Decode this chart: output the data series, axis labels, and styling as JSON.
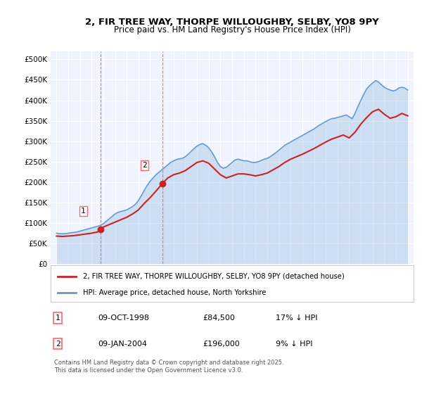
{
  "title_line1": "2, FIR TREE WAY, THORPE WILLOUGHBY, SELBY, YO8 9PY",
  "title_line2": "Price paid vs. HM Land Registry's House Price Index (HPI)",
  "background_color": "#ffffff",
  "plot_bg_color": "#f0f4ff",
  "grid_color": "#ffffff",
  "ylabel": "",
  "ylim": [
    0,
    520000
  ],
  "yticks": [
    0,
    50000,
    100000,
    150000,
    200000,
    250000,
    300000,
    350000,
    400000,
    450000,
    500000
  ],
  "ytick_labels": [
    "£0",
    "£50K",
    "£100K",
    "£150K",
    "£200K",
    "£250K",
    "£300K",
    "£350K",
    "£400K",
    "£450K",
    "£500K"
  ],
  "hpi_color": "#6699cc",
  "price_color": "#cc2222",
  "vline_color": "#ff6666",
  "sale1_date": 1998.77,
  "sale1_price": 84500,
  "sale1_label": "1",
  "sale2_date": 2004.03,
  "sale2_price": 196000,
  "sale2_label": "2",
  "legend_entry1": "2, FIR TREE WAY, THORPE WILLOUGHBY, SELBY, YO8 9PY (detached house)",
  "legend_entry2": "HPI: Average price, detached house, North Yorkshire",
  "table_row1": [
    "1",
    "09-OCT-1998",
    "£84,500",
    "17% ↓ HPI"
  ],
  "table_row2": [
    "2",
    "09-JAN-2004",
    "£196,000",
    "9% ↓ HPI"
  ],
  "footnote": "Contains HM Land Registry data © Crown copyright and database right 2025.\nThis data is licensed under the Open Government Licence v3.0.",
  "hpi_data": {
    "years": [
      1995.0,
      1995.25,
      1995.5,
      1995.75,
      1996.0,
      1996.25,
      1996.5,
      1996.75,
      1997.0,
      1997.25,
      1997.5,
      1997.75,
      1998.0,
      1998.25,
      1998.5,
      1998.75,
      1999.0,
      1999.25,
      1999.5,
      1999.75,
      2000.0,
      2000.25,
      2000.5,
      2000.75,
      2001.0,
      2001.25,
      2001.5,
      2001.75,
      2002.0,
      2002.25,
      2002.5,
      2002.75,
      2003.0,
      2003.25,
      2003.5,
      2003.75,
      2004.0,
      2004.25,
      2004.5,
      2004.75,
      2005.0,
      2005.25,
      2005.5,
      2005.75,
      2006.0,
      2006.25,
      2006.5,
      2006.75,
      2007.0,
      2007.25,
      2007.5,
      2007.75,
      2008.0,
      2008.25,
      2008.5,
      2008.75,
      2009.0,
      2009.25,
      2009.5,
      2009.75,
      2010.0,
      2010.25,
      2010.5,
      2010.75,
      2011.0,
      2011.25,
      2011.5,
      2011.75,
      2012.0,
      2012.25,
      2012.5,
      2012.75,
      2013.0,
      2013.25,
      2013.5,
      2013.75,
      2014.0,
      2014.25,
      2014.5,
      2014.75,
      2015.0,
      2015.25,
      2015.5,
      2015.75,
      2016.0,
      2016.25,
      2016.5,
      2016.75,
      2017.0,
      2017.25,
      2017.5,
      2017.75,
      2018.0,
      2018.25,
      2018.5,
      2018.75,
      2019.0,
      2019.25,
      2019.5,
      2019.75,
      2020.0,
      2020.25,
      2020.5,
      2020.75,
      2021.0,
      2021.25,
      2021.5,
      2021.75,
      2022.0,
      2022.25,
      2022.5,
      2022.75,
      2023.0,
      2023.25,
      2023.5,
      2023.75,
      2024.0,
      2024.25,
      2024.5,
      2024.75,
      2025.0
    ],
    "values": [
      75000,
      74000,
      73500,
      74000,
      75000,
      76000,
      77000,
      78000,
      80000,
      82000,
      84000,
      86000,
      88000,
      90000,
      92000,
      94000,
      98000,
      104000,
      110000,
      116000,
      122000,
      126000,
      128000,
      130000,
      132000,
      136000,
      140000,
      146000,
      155000,
      167000,
      180000,
      192000,
      202000,
      210000,
      218000,
      224000,
      230000,
      236000,
      242000,
      248000,
      252000,
      255000,
      257000,
      258000,
      262000,
      268000,
      275000,
      282000,
      288000,
      292000,
      294000,
      290000,
      284000,
      274000,
      262000,
      248000,
      238000,
      234000,
      236000,
      242000,
      248000,
      254000,
      256000,
      254000,
      252000,
      252000,
      250000,
      248000,
      248000,
      250000,
      253000,
      256000,
      258000,
      262000,
      267000,
      272000,
      278000,
      284000,
      290000,
      294000,
      298000,
      302000,
      306000,
      310000,
      314000,
      318000,
      322000,
      326000,
      330000,
      335000,
      340000,
      344000,
      348000,
      352000,
      355000,
      356000,
      358000,
      360000,
      362000,
      364000,
      360000,
      355000,
      368000,
      385000,
      400000,
      415000,
      428000,
      436000,
      442000,
      448000,
      445000,
      438000,
      432000,
      428000,
      425000,
      423000,
      425000,
      430000,
      432000,
      430000,
      425000
    ]
  },
  "price_data": {
    "years": [
      1995.0,
      1995.5,
      1996.0,
      1996.5,
      1997.0,
      1997.5,
      1998.0,
      1998.5,
      1998.77,
      1999.0,
      1999.5,
      2000.0,
      2000.5,
      2001.0,
      2001.5,
      2002.0,
      2002.5,
      2003.0,
      2003.5,
      2004.03,
      2004.5,
      2005.0,
      2005.5,
      2006.0,
      2006.5,
      2007.0,
      2007.5,
      2008.0,
      2008.5,
      2009.0,
      2009.5,
      2010.0,
      2010.5,
      2011.0,
      2011.5,
      2012.0,
      2012.5,
      2013.0,
      2013.5,
      2014.0,
      2014.5,
      2015.0,
      2015.5,
      2016.0,
      2016.5,
      2017.0,
      2017.5,
      2018.0,
      2018.5,
      2019.0,
      2019.5,
      2020.0,
      2020.5,
      2021.0,
      2021.5,
      2022.0,
      2022.5,
      2023.0,
      2023.5,
      2024.0,
      2024.5,
      2025.0
    ],
    "values": [
      68000,
      67000,
      68000,
      69000,
      71000,
      73000,
      75000,
      78000,
      84500,
      90000,
      96000,
      102000,
      108000,
      114000,
      122000,
      132000,
      148000,
      162000,
      178000,
      196000,
      210000,
      218000,
      222000,
      228000,
      238000,
      248000,
      252000,
      246000,
      232000,
      218000,
      210000,
      215000,
      220000,
      220000,
      218000,
      215000,
      218000,
      222000,
      230000,
      238000,
      248000,
      256000,
      262000,
      268000,
      275000,
      282000,
      290000,
      298000,
      305000,
      310000,
      315000,
      308000,
      322000,
      342000,
      358000,
      372000,
      378000,
      366000,
      356000,
      360000,
      368000,
      362000
    ]
  }
}
